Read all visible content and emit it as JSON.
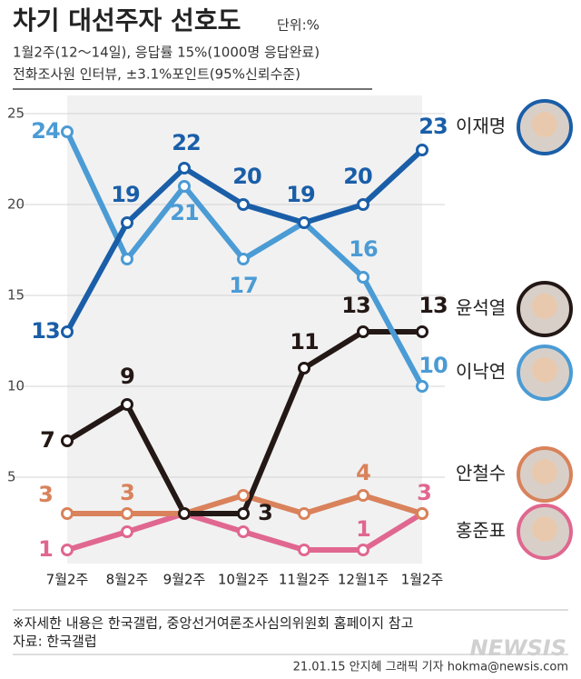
{
  "chart_data": {
    "type": "line",
    "title": "차기 대선주자 선호도",
    "unit": "단위:%",
    "subtitle": [
      "1월2주(12～14일), 응답률 15%(1000명 응답완료)",
      "전화조사원 인터뷰, ±3.1%포인트(95%신뢰수준)"
    ],
    "categories": [
      "7월2주",
      "8월2주",
      "9월2주",
      "10월2주",
      "11월2주",
      "12월1주",
      "1월2주"
    ],
    "ylim": [
      0,
      26
    ],
    "yticks": [
      5,
      10,
      15,
      20,
      25
    ],
    "grid": true,
    "series": [
      {
        "name": "홍준표",
        "color": "#e06790",
        "values": [
          1,
          2,
          3,
          2,
          1,
          1,
          3
        ],
        "value_labels": [
          "1",
          null,
          null,
          null,
          null,
          "1",
          "3"
        ]
      },
      {
        "name": "안철수",
        "color": "#d9825b",
        "values": [
          3,
          3,
          3,
          4,
          3,
          4,
          3
        ],
        "value_labels": [
          "3",
          "3",
          null,
          null,
          null,
          "4",
          null
        ]
      },
      {
        "name": "윤석열",
        "color": "#231815",
        "values": [
          7,
          9,
          3,
          3,
          11,
          13,
          13
        ],
        "value_labels": [
          "7",
          "9",
          null,
          "3",
          "11",
          "13",
          "13"
        ]
      },
      {
        "name": "이낙연",
        "color": "#4b9bd5",
        "values": [
          24,
          17,
          21,
          17,
          19,
          16,
          10
        ],
        "value_labels": [
          "24",
          null,
          "21",
          "17",
          null,
          "16",
          "10"
        ]
      },
      {
        "name": "이재명",
        "color": "#1a5ea8",
        "values": [
          13,
          19,
          22,
          20,
          19,
          20,
          23
        ],
        "value_labels": [
          "13",
          "19",
          "22",
          "20",
          "19",
          "20",
          "23"
        ]
      }
    ],
    "notes": [
      "※자세한 내용은 한국갤럽, 중앙선거여론조사심의위원회 홈페이지 참고",
      "자료: 한국갤럽"
    ],
    "credit": "21.01.15 안지혜 그래픽 기자 hokma@newsis.com",
    "logo": "NEWSIS"
  }
}
